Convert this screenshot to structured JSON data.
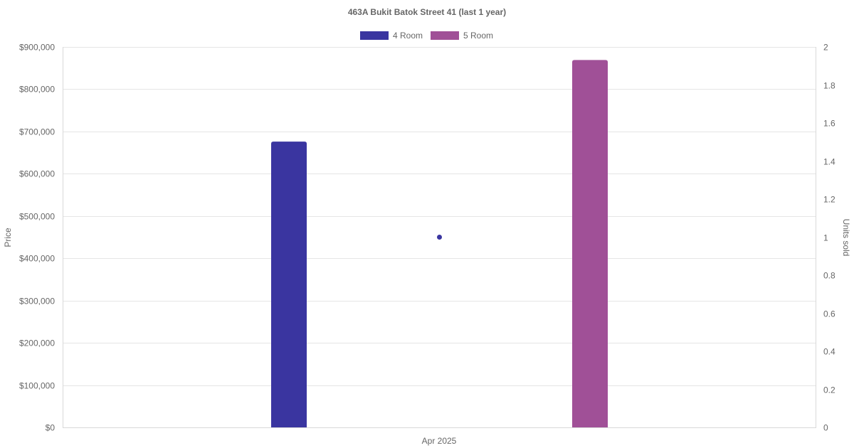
{
  "chart_data": {
    "type": "bar",
    "title": "463A Bukit Batok Street 41 (last 1 year)",
    "categories": [
      "Apr 2025"
    ],
    "series": [
      {
        "name": "4 Room",
        "type": "bar",
        "axis": "left",
        "color": "#3a35a0",
        "values": [
          676000
        ]
      },
      {
        "name": "5 Room",
        "type": "bar",
        "axis": "left",
        "color": "#a05097",
        "values": [
          869000
        ]
      },
      {
        "type": "point",
        "axis": "right",
        "color": "#3a35a0",
        "values": [
          1
        ]
      }
    ],
    "ylabel": "Price",
    "y2label": "Units sold",
    "ylim": [
      0,
      900000
    ],
    "y2lim": [
      0,
      2
    ],
    "yticks": [
      "$0",
      "$100,000",
      "$200,000",
      "$300,000",
      "$400,000",
      "$500,000",
      "$600,000",
      "$700,000",
      "$800,000",
      "$900,000"
    ],
    "y2ticks": [
      "0",
      "0.2",
      "0.4",
      "0.6",
      "0.8",
      "1",
      "1.2",
      "1.4",
      "1.6",
      "1.8",
      "2"
    ],
    "legend_position": "top-center",
    "grid": true
  }
}
